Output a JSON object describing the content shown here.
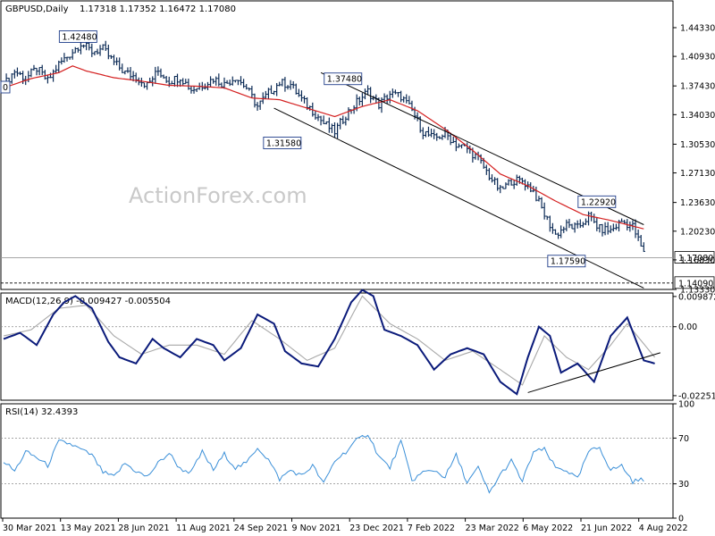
{
  "chart_data": [
    {
      "type": "ohlc",
      "title": "GBPUSD,Daily",
      "ohlc_header": [
        "1.17318",
        "1.17352",
        "1.16472",
        "1.17080"
      ],
      "watermark": "ActionForex.com",
      "ylim": [
        1.1333,
        1.475
      ],
      "y_ticks": [
        "1.44330",
        "1.40930",
        "1.37430",
        "1.34030",
        "1.30530",
        "1.27130",
        "1.23630",
        "1.20230",
        "1.16830",
        "1.13330"
      ],
      "x_ticks": [
        "30 Mar 2021",
        "13 May 2021",
        "28 Jun 2021",
        "11 Aug 2021",
        "24 Sep 2021",
        "9 Nov 2021",
        "23 Dec 2021",
        "7 Feb 2022",
        "23 Mar 2022",
        "6 May 2022",
        "21 Jun 2022",
        "4 Aug 2022"
      ],
      "close_path": [
        [
          0,
          1.375
        ],
        [
          4,
          1.392
        ],
        [
          8,
          1.383
        ],
        [
          12,
          1.395
        ],
        [
          16,
          1.38
        ],
        [
          20,
          1.4
        ],
        [
          24,
          1.412
        ],
        [
          28,
          1.425
        ],
        [
          32,
          1.415
        ],
        [
          36,
          1.418
        ],
        [
          40,
          1.402
        ],
        [
          44,
          1.39
        ],
        [
          48,
          1.385
        ],
        [
          52,
          1.375
        ],
        [
          56,
          1.392
        ],
        [
          60,
          1.38
        ],
        [
          64,
          1.385
        ],
        [
          68,
          1.37
        ],
        [
          72,
          1.375
        ],
        [
          76,
          1.383
        ],
        [
          80,
          1.376
        ],
        [
          84,
          1.385
        ],
        [
          88,
          1.372
        ],
        [
          92,
          1.35
        ],
        [
          96,
          1.366
        ],
        [
          100,
          1.378
        ],
        [
          104,
          1.376
        ],
        [
          108,
          1.358
        ],
        [
          112,
          1.345
        ],
        [
          116,
          1.33
        ],
        [
          120,
          1.32
        ],
        [
          124,
          1.34
        ],
        [
          128,
          1.355
        ],
        [
          132,
          1.368
        ],
        [
          136,
          1.352
        ],
        [
          140,
          1.365
        ],
        [
          144,
          1.362
        ],
        [
          148,
          1.345
        ],
        [
          152,
          1.32
        ],
        [
          156,
          1.312
        ],
        [
          160,
          1.318
        ],
        [
          164,
          1.305
        ],
        [
          168,
          1.3
        ],
        [
          172,
          1.288
        ],
        [
          176,
          1.268
        ],
        [
          180,
          1.25
        ],
        [
          184,
          1.262
        ],
        [
          188,
          1.262
        ],
        [
          192,
          1.25
        ],
        [
          196,
          1.222
        ],
        [
          200,
          1.198
        ],
        [
          204,
          1.209
        ],
        [
          208,
          1.206
        ],
        [
          212,
          1.22
        ],
        [
          216,
          1.205
        ],
        [
          220,
          1.203
        ],
        [
          224,
          1.214
        ],
        [
          228,
          1.208
        ],
        [
          232,
          1.176
        ]
      ],
      "ma_path": [
        [
          0,
          1.372
        ],
        [
          10,
          1.383
        ],
        [
          20,
          1.39
        ],
        [
          25,
          1.398
        ],
        [
          30,
          1.392
        ],
        [
          40,
          1.384
        ],
        [
          50,
          1.38
        ],
        [
          60,
          1.375
        ],
        [
          70,
          1.374
        ],
        [
          80,
          1.372
        ],
        [
          90,
          1.36
        ],
        [
          100,
          1.358
        ],
        [
          110,
          1.348
        ],
        [
          120,
          1.338
        ],
        [
          130,
          1.35
        ],
        [
          140,
          1.358
        ],
        [
          150,
          1.345
        ],
        [
          160,
          1.323
        ],
        [
          170,
          1.298
        ],
        [
          180,
          1.27
        ],
        [
          190,
          1.256
        ],
        [
          200,
          1.238
        ],
        [
          210,
          1.222
        ],
        [
          220,
          1.215
        ],
        [
          232,
          1.205
        ]
      ],
      "channel_upper": [
        [
          115,
          1.39
        ],
        [
          232,
          1.21
        ]
      ],
      "channel_lower": [
        [
          98,
          1.348
        ],
        [
          232,
          1.135
        ]
      ],
      "annotations": [
        {
          "label": "1.42480",
          "x": 27,
          "value": 1.4248
        },
        {
          "label": "1.37480",
          "x": 123,
          "value": 1.3748
        },
        {
          "label": "1.31580",
          "x": 101,
          "value": 1.3158
        },
        {
          "label": "1.22920",
          "x": 215,
          "value": 1.2292
        },
        {
          "label": "1.17590",
          "x": 204,
          "value": 1.1759
        }
      ],
      "current_price": "1.17080",
      "support_level": "1.14090",
      "left_edge_label": "0"
    },
    {
      "type": "line",
      "title": "MACD(12,26,9) -0.009427 -0.005504",
      "ylim": [
        -0.024,
        0.011
      ],
      "y_ticks": [
        "0.009872",
        "0.00",
        "-0.022516"
      ],
      "macd_path": [
        [
          0,
          -0.004
        ],
        [
          6,
          -0.002
        ],
        [
          12,
          -0.006
        ],
        [
          18,
          0.004
        ],
        [
          22,
          0.008
        ],
        [
          26,
          0.01
        ],
        [
          32,
          0.006
        ],
        [
          38,
          -0.005
        ],
        [
          42,
          -0.01
        ],
        [
          48,
          -0.012
        ],
        [
          54,
          -0.004
        ],
        [
          58,
          -0.007
        ],
        [
          64,
          -0.01
        ],
        [
          70,
          -0.004
        ],
        [
          76,
          -0.006
        ],
        [
          80,
          -0.011
        ],
        [
          86,
          -0.007
        ],
        [
          92,
          0.004
        ],
        [
          98,
          0.001
        ],
        [
          102,
          -0.008
        ],
        [
          108,
          -0.012
        ],
        [
          114,
          -0.013
        ],
        [
          120,
          -0.004
        ],
        [
          126,
          0.008
        ],
        [
          130,
          0.012
        ],
        [
          134,
          0.01
        ],
        [
          138,
          -0.001
        ],
        [
          144,
          -0.003
        ],
        [
          150,
          -0.006
        ],
        [
          156,
          -0.014
        ],
        [
          162,
          -0.009
        ],
        [
          168,
          -0.007
        ],
        [
          174,
          -0.009
        ],
        [
          180,
          -0.018
        ],
        [
          186,
          -0.022
        ],
        [
          190,
          -0.01
        ],
        [
          194,
          0.0
        ],
        [
          198,
          -0.003
        ],
        [
          202,
          -0.015
        ],
        [
          208,
          -0.012
        ],
        [
          214,
          -0.018
        ],
        [
          220,
          -0.003
        ],
        [
          226,
          0.003
        ],
        [
          232,
          -0.011
        ],
        [
          236,
          -0.012
        ]
      ],
      "signal_path": [
        [
          0,
          -0.003
        ],
        [
          10,
          -0.001
        ],
        [
          20,
          0.006
        ],
        [
          30,
          0.007
        ],
        [
          40,
          -0.003
        ],
        [
          50,
          -0.009
        ],
        [
          60,
          -0.006
        ],
        [
          70,
          -0.006
        ],
        [
          80,
          -0.009
        ],
        [
          90,
          0.002
        ],
        [
          100,
          -0.004
        ],
        [
          110,
          -0.011
        ],
        [
          120,
          -0.007
        ],
        [
          130,
          0.01
        ],
        [
          140,
          0.001
        ],
        [
          150,
          -0.004
        ],
        [
          160,
          -0.011
        ],
        [
          170,
          -0.008
        ],
        [
          180,
          -0.014
        ],
        [
          188,
          -0.019
        ],
        [
          196,
          -0.003
        ],
        [
          204,
          -0.01
        ],
        [
          212,
          -0.014
        ],
        [
          220,
          -0.006
        ],
        [
          226,
          0.001
        ],
        [
          236,
          -0.01
        ]
      ],
      "trendline": [
        [
          190,
          -0.0215
        ],
        [
          238,
          -0.0085
        ]
      ]
    },
    {
      "type": "line",
      "title": "RSI(14) 32.4393",
      "ylim": [
        0,
        100
      ],
      "y_ticks": [
        "100",
        "70",
        "30",
        "0"
      ],
      "levels": [
        70,
        30
      ],
      "rsi_path": [
        [
          0,
          50
        ],
        [
          4,
          41
        ],
        [
          8,
          58
        ],
        [
          12,
          53
        ],
        [
          16,
          46
        ],
        [
          20,
          67
        ],
        [
          24,
          65
        ],
        [
          28,
          60
        ],
        [
          32,
          55
        ],
        [
          36,
          40
        ],
        [
          40,
          36
        ],
        [
          44,
          48
        ],
        [
          48,
          41
        ],
        [
          52,
          36
        ],
        [
          56,
          48
        ],
        [
          60,
          57
        ],
        [
          64,
          43
        ],
        [
          68,
          40
        ],
        [
          72,
          58
        ],
        [
          76,
          42
        ],
        [
          80,
          56
        ],
        [
          84,
          44
        ],
        [
          88,
          48
        ],
        [
          92,
          62
        ],
        [
          96,
          51
        ],
        [
          100,
          34
        ],
        [
          104,
          42
        ],
        [
          108,
          37
        ],
        [
          112,
          46
        ],
        [
          116,
          30
        ],
        [
          120,
          50
        ],
        [
          124,
          58
        ],
        [
          128,
          68
        ],
        [
          132,
          74
        ],
        [
          136,
          54
        ],
        [
          140,
          44
        ],
        [
          144,
          67
        ],
        [
          148,
          33
        ],
        [
          152,
          40
        ],
        [
          156,
          42
        ],
        [
          160,
          36
        ],
        [
          164,
          55
        ],
        [
          168,
          31
        ],
        [
          172,
          44
        ],
        [
          176,
          22
        ],
        [
          180,
          38
        ],
        [
          184,
          50
        ],
        [
          188,
          32
        ],
        [
          192,
          58
        ],
        [
          196,
          60
        ],
        [
          200,
          44
        ],
        [
          204,
          42
        ],
        [
          208,
          34
        ],
        [
          212,
          58
        ],
        [
          216,
          62
        ],
        [
          220,
          42
        ],
        [
          224,
          46
        ],
        [
          228,
          32
        ],
        [
          232,
          34
        ]
      ]
    }
  ]
}
